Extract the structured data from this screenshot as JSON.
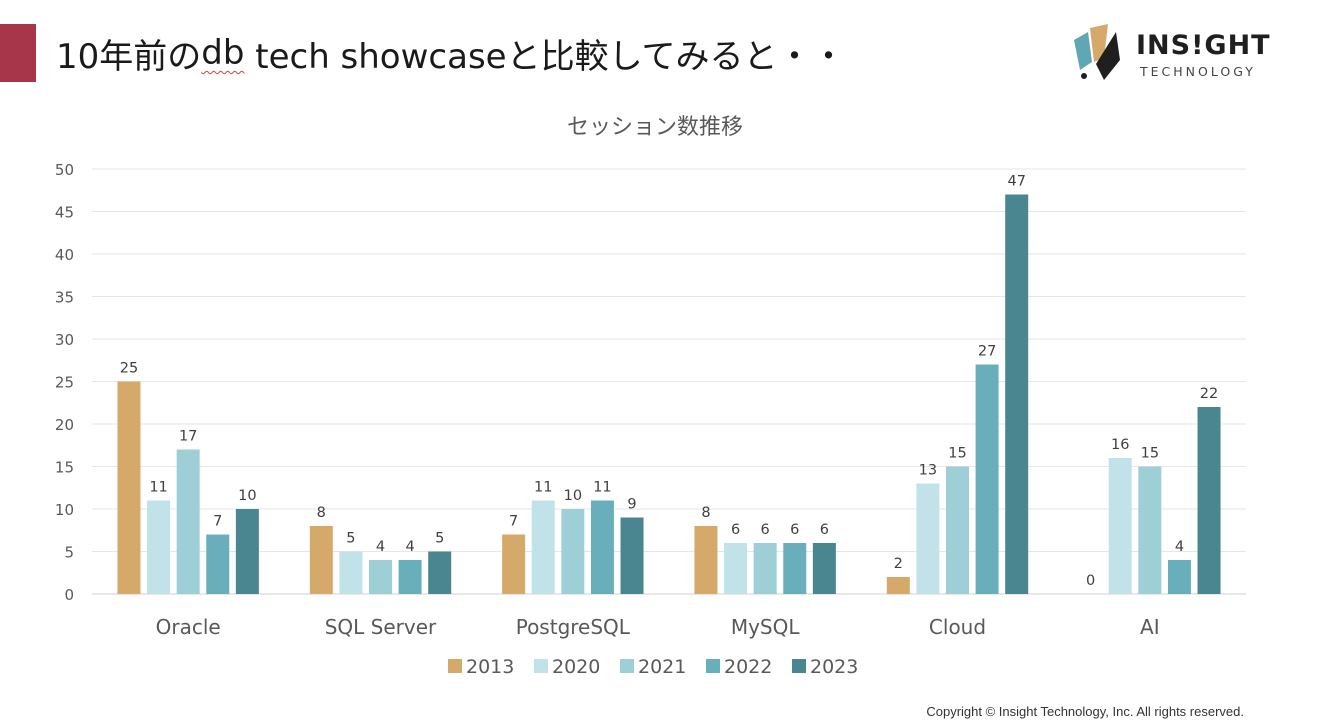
{
  "slide": {
    "title_prefix": "10年前の",
    "title_db": "db",
    "title_suffix": " tech showcaseと比較してみると・・",
    "logo_main": "INS!GHT",
    "logo_sub": "TECHNOLOGY",
    "copyright": "Copyright © Insight Technology, Inc. All rights reserved.",
    "colors": {
      "accent": "#a8364a"
    }
  },
  "chart_data": {
    "type": "bar",
    "title": "セッション数推移",
    "xlabel": "",
    "ylabel": "",
    "ylim": [
      0,
      50
    ],
    "yticks": [
      "0",
      "5",
      "10",
      "15",
      "20",
      "25",
      "30",
      "35",
      "40",
      "45",
      "50"
    ],
    "grid": true,
    "legend_position": "bottom",
    "categories": [
      "Oracle",
      "SQL Server",
      "PostgreSQL",
      "MySQL",
      "Cloud",
      "AI"
    ],
    "series": [
      {
        "name": "2013",
        "color": "#d4a96a",
        "values": [
          25,
          8,
          7,
          8,
          2,
          0
        ]
      },
      {
        "name": "2020",
        "color": "#c1e2e8",
        "values": [
          11,
          5,
          11,
          6,
          13,
          16
        ]
      },
      {
        "name": "2021",
        "color": "#9ecfd6",
        "values": [
          17,
          4,
          10,
          6,
          15,
          15
        ]
      },
      {
        "name": "2022",
        "color": "#68afbb",
        "values": [
          7,
          4,
          11,
          6,
          27,
          4
        ]
      },
      {
        "name": "2023",
        "color": "#4a8690",
        "values": [
          10,
          5,
          9,
          6,
          47,
          22
        ]
      }
    ]
  }
}
